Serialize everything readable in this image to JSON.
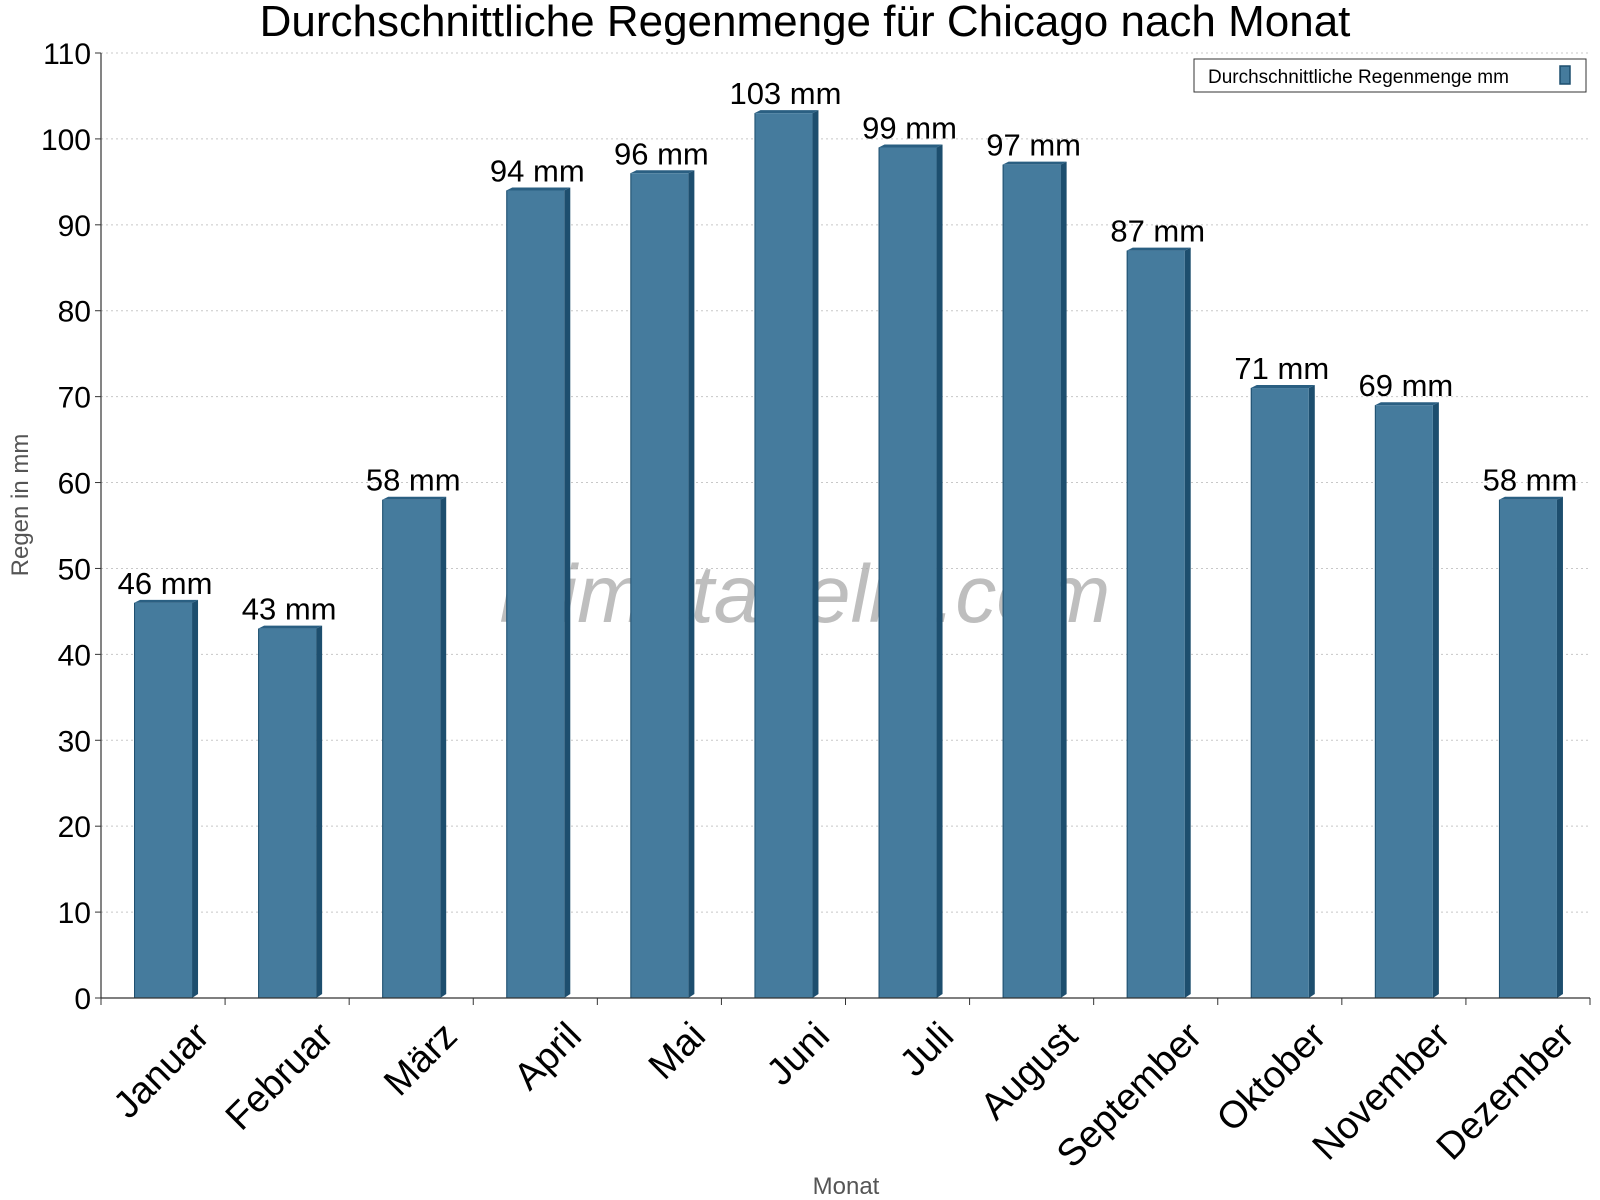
{
  "chart_data": {
    "type": "bar",
    "title": "Durchschnittliche Regenmenge für Chicago nach Monat",
    "xlabel": "Monat",
    "ylabel": "Regen in mm",
    "categories": [
      "Januar",
      "Februar",
      "März",
      "April",
      "Mai",
      "Juni",
      "Juli",
      "August",
      "September",
      "Oktober",
      "November",
      "Dezember"
    ],
    "series": [
      {
        "name": "Durchschnittliche Regenmenge mm",
        "values": [
          46,
          43,
          58,
          94,
          96,
          103,
          99,
          97,
          87,
          71,
          69,
          58
        ],
        "labels": [
          "46 mm",
          "43 mm",
          "58 mm",
          "94 mm",
          "96 mm",
          "103 mm",
          "99 mm",
          "97 mm",
          "87 mm",
          "71 mm",
          "69 mm",
          "58 mm"
        ]
      }
    ],
    "ylim": [
      0,
      110
    ],
    "yticks": [
      0,
      10,
      20,
      30,
      40,
      50,
      60,
      70,
      80,
      90,
      100,
      110
    ],
    "grid": true,
    "legend_position": "top-right",
    "colors": {
      "bar_front": "#457b9d",
      "bar_side": "#1d4e6e",
      "bar_top": "#2a5f82",
      "grid": "#c8c8c8",
      "axis": "#333333"
    }
  },
  "watermark": "klimatabelle.com"
}
